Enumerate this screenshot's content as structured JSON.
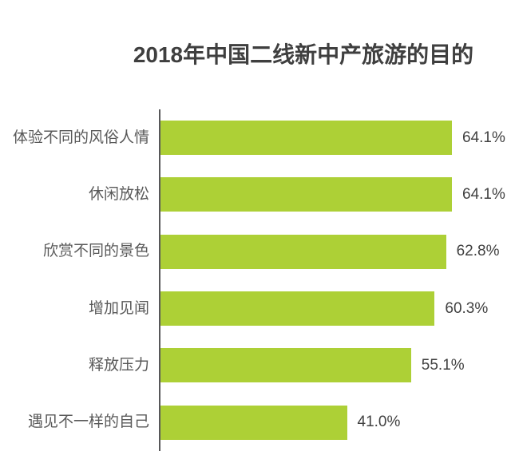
{
  "title": "2018年中国二线新中产旅游的目的",
  "chart_data": {
    "type": "bar",
    "orientation": "horizontal",
    "title": "2018年中国二线新中产旅游的目的",
    "categories": [
      "体验不同的风俗人情",
      "休闲放松",
      "欣赏不同的景色",
      "增加见闻",
      "释放压力",
      "遇见不一样的自己"
    ],
    "values": [
      64.1,
      64.1,
      62.8,
      60.3,
      55.1,
      41.0
    ],
    "value_labels": [
      "64.1%",
      "64.1%",
      "62.8%",
      "60.3%",
      "55.1%",
      "41.0%"
    ],
    "xlabel": "",
    "ylabel": "",
    "xlim": [
      0,
      70
    ],
    "grid": false,
    "legend": false,
    "bar_color": "#add036",
    "axis_color": "#58585a",
    "label_color": "#595959",
    "value_color": "#414141",
    "title_color": "#3f3f3f"
  }
}
